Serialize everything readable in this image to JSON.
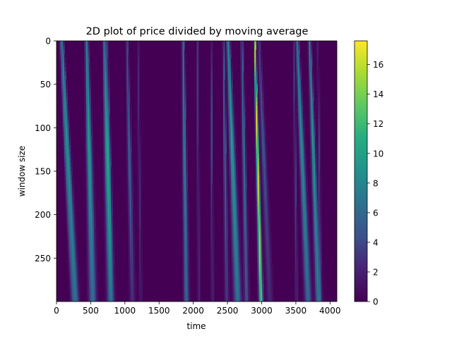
{
  "chart_data": {
    "type": "heatmap",
    "title": "2D plot of price divided by moving average",
    "xlabel": "time",
    "ylabel": "window size",
    "xlim": [
      0,
      4100
    ],
    "ylim": [
      300,
      0
    ],
    "x_ticks": [
      0,
      500,
      1000,
      1500,
      2000,
      2500,
      3000,
      3500,
      4000
    ],
    "y_ticks": [
      0,
      50,
      100,
      150,
      200,
      250
    ],
    "colorbar": {
      "colormap": "viridis",
      "range": [
        0,
        17.6
      ],
      "ticks": [
        0,
        2,
        4,
        6,
        8,
        10,
        12,
        14,
        16
      ]
    },
    "streaks": [
      {
        "x0": 80,
        "x1": 280,
        "peak": 9,
        "width": 22,
        "fade": 0.3
      },
      {
        "x0": 55,
        "x1": 230,
        "peak": 4,
        "width": 14,
        "fade": 0.6
      },
      {
        "x0": 440,
        "x1": 530,
        "peak": 10,
        "width": 26,
        "fade": 0.4
      },
      {
        "x0": 700,
        "x1": 790,
        "peak": 10.5,
        "width": 24,
        "fade": 0.5
      },
      {
        "x0": 740,
        "x1": 810,
        "peak": 4,
        "width": 14,
        "fade": 0.6
      },
      {
        "x0": 1030,
        "x1": 1110,
        "peak": 6,
        "width": 18,
        "fade": 0.6
      },
      {
        "x0": 1190,
        "x1": 1230,
        "peak": 3,
        "width": 10,
        "fade": 0.5
      },
      {
        "x0": 1850,
        "x1": 1900,
        "peak": 8,
        "width": 18,
        "fade": 0.3
      },
      {
        "x0": 2060,
        "x1": 2080,
        "peak": 4,
        "width": 8,
        "fade": 0.5
      },
      {
        "x0": 2260,
        "x1": 2280,
        "peak": 4,
        "width": 8,
        "fade": 0.4
      },
      {
        "x0": 2440,
        "x1": 2490,
        "peak": 6,
        "width": 14,
        "fade": 0.5
      },
      {
        "x0": 2510,
        "x1": 2650,
        "peak": 10,
        "width": 26,
        "fade": 0.35
      },
      {
        "x0": 2710,
        "x1": 2780,
        "peak": 7,
        "width": 16,
        "fade": 0.4
      },
      {
        "x0": 2900,
        "x1": 2990,
        "peak": 17.5,
        "width": 14,
        "fade": 0.25
      },
      {
        "x0": 2960,
        "x1": 3120,
        "peak": 5,
        "width": 22,
        "fade": 0.6
      },
      {
        "x0": 3470,
        "x1": 3510,
        "peak": 4,
        "width": 10,
        "fade": 0.5
      },
      {
        "x0": 3520,
        "x1": 3680,
        "peak": 9,
        "width": 24,
        "fade": 0.35
      },
      {
        "x0": 3700,
        "x1": 3830,
        "peak": 9.5,
        "width": 20,
        "fade": 0.3
      },
      {
        "x0": 3820,
        "x1": 3860,
        "peak": 3.5,
        "width": 10,
        "fade": 0.5
      }
    ]
  }
}
